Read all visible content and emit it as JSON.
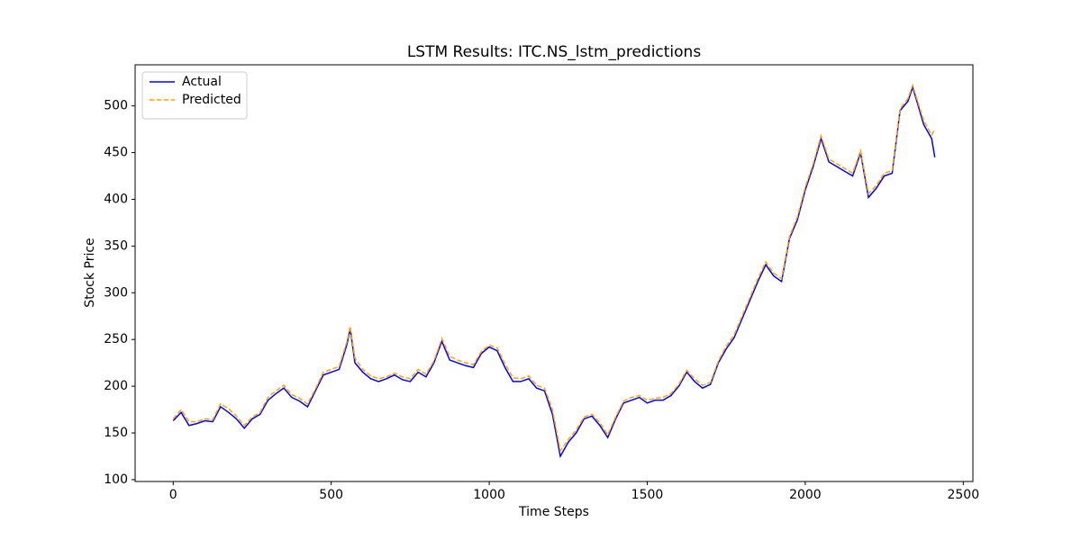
{
  "chart_data": {
    "type": "line",
    "title": "LSTM Results: ITC.NS_lstm_predictions",
    "x_label": "Time Steps",
    "y_label": "Stock Price",
    "x": [
      0,
      25,
      50,
      75,
      100,
      125,
      150,
      175,
      200,
      225,
      250,
      275,
      300,
      325,
      350,
      375,
      400,
      425,
      450,
      475,
      500,
      525,
      550,
      560,
      575,
      600,
      625,
      650,
      675,
      700,
      725,
      750,
      775,
      800,
      825,
      850,
      875,
      900,
      925,
      950,
      975,
      1000,
      1025,
      1050,
      1075,
      1100,
      1125,
      1150,
      1175,
      1200,
      1225,
      1250,
      1275,
      1300,
      1325,
      1350,
      1375,
      1400,
      1425,
      1450,
      1475,
      1500,
      1525,
      1550,
      1575,
      1600,
      1625,
      1650,
      1675,
      1700,
      1725,
      1750,
      1775,
      1800,
      1825,
      1850,
      1875,
      1900,
      1925,
      1950,
      1975,
      2000,
      2025,
      2050,
      2075,
      2100,
      2125,
      2150,
      2175,
      2200,
      2225,
      2250,
      2275,
      2300,
      2325,
      2340,
      2375,
      2400,
      2410
    ],
    "series": [
      {
        "name": "Actual",
        "color": "#0000ff",
        "linestyle": "solid",
        "values": [
          163,
          172,
          158,
          160,
          163,
          162,
          178,
          172,
          165,
          155,
          165,
          170,
          185,
          192,
          198,
          188,
          184,
          178,
          195,
          212,
          215,
          218,
          245,
          262,
          225,
          215,
          208,
          205,
          208,
          212,
          207,
          205,
          215,
          210,
          225,
          248,
          228,
          225,
          222,
          220,
          235,
          242,
          238,
          220,
          205,
          205,
          208,
          198,
          195,
          170,
          125,
          140,
          150,
          165,
          168,
          158,
          145,
          165,
          182,
          185,
          188,
          182,
          185,
          185,
          190,
          200,
          215,
          205,
          198,
          202,
          225,
          240,
          252,
          272,
          292,
          312,
          330,
          318,
          312,
          358,
          378,
          410,
          435,
          465,
          440,
          435,
          430,
          425,
          450,
          402,
          412,
          425,
          428,
          495,
          505,
          520,
          480,
          465,
          445
        ]
      },
      {
        "name": "Predicted",
        "color": "#ffa500",
        "linestyle": "dashed",
        "values": [
          165,
          175,
          162,
          162,
          165,
          164,
          181,
          176,
          168,
          158,
          167,
          172,
          188,
          195,
          201,
          191,
          187,
          181,
          197,
          215,
          218,
          221,
          248,
          264,
          230,
          218,
          211,
          208,
          210,
          214,
          210,
          208,
          218,
          213,
          227,
          251,
          232,
          228,
          225,
          223,
          237,
          244,
          241,
          224,
          209,
          208,
          211,
          201,
          198,
          175,
          131,
          143,
          153,
          167,
          170,
          161,
          148,
          167,
          184,
          188,
          190,
          185,
          187,
          188,
          192,
          202,
          217,
          208,
          201,
          204,
          227,
          243,
          255,
          275,
          295,
          315,
          333,
          321,
          315,
          360,
          381,
          413,
          438,
          468,
          443,
          438,
          433,
          428,
          452,
          406,
          415,
          428,
          431,
          497,
          508,
          522,
          484,
          469,
          475
        ]
      }
    ],
    "xlim": [
      -120.5,
      2530.5
    ],
    "ylim": [
      98,
      544
    ],
    "xticks": [
      0,
      500,
      1000,
      1500,
      2000,
      2500
    ],
    "yticks": [
      100,
      150,
      200,
      250,
      300,
      350,
      400,
      450,
      500
    ],
    "legend": "upper left"
  }
}
